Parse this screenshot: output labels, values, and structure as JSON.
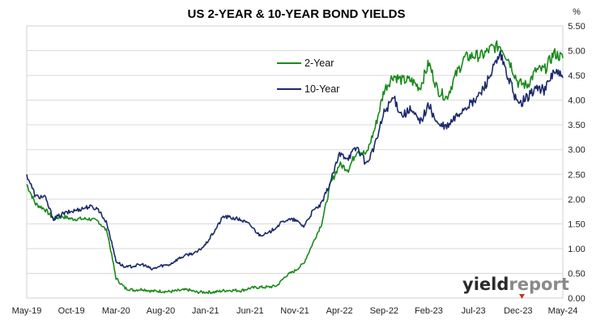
{
  "chart_data": {
    "type": "line",
    "title": "US 2-YEAR & 10-YEAR BOND YIELDS",
    "y_unit": "%",
    "ylim": [
      0,
      5.5
    ],
    "y_ticks": [
      "0.00",
      "0.50",
      "1.00",
      "1.50",
      "2.00",
      "2.50",
      "3.00",
      "3.50",
      "4.00",
      "4.50",
      "5.00",
      "5.50"
    ],
    "x_ticks": [
      "May-19",
      "Oct-19",
      "Mar-20",
      "Aug-20",
      "Jan-21",
      "Jun-21",
      "Nov-21",
      "Apr-22",
      "Sep-22",
      "Feb-23",
      "Jul-23",
      "Dec-23",
      "May-24"
    ],
    "grid": true,
    "legend_position": "top-center",
    "x_range": [
      "2019-05",
      "2024-05"
    ],
    "x_dates": [
      "2019-05",
      "2019-06",
      "2019-07",
      "2019-08",
      "2019-09",
      "2019-10",
      "2019-11",
      "2019-12",
      "2020-01",
      "2020-02",
      "2020-03",
      "2020-04",
      "2020-05",
      "2020-06",
      "2020-07",
      "2020-08",
      "2020-09",
      "2020-10",
      "2020-11",
      "2020-12",
      "2021-01",
      "2021-02",
      "2021-03",
      "2021-04",
      "2021-05",
      "2021-06",
      "2021-07",
      "2021-08",
      "2021-09",
      "2021-10",
      "2021-11",
      "2021-12",
      "2022-01",
      "2022-02",
      "2022-03",
      "2022-04",
      "2022-05",
      "2022-06",
      "2022-07",
      "2022-08",
      "2022-09",
      "2022-10",
      "2022-11",
      "2022-12",
      "2023-01",
      "2023-02",
      "2023-03",
      "2023-04",
      "2023-05",
      "2023-06",
      "2023-07",
      "2023-08",
      "2023-09",
      "2023-10",
      "2023-11",
      "2023-12",
      "2024-01",
      "2024-02",
      "2024-03",
      "2024-04",
      "2024-05"
    ],
    "series": [
      {
        "name": "2-Year",
        "color": "#1a8a1a",
        "values": [
          2.3,
          1.9,
          1.8,
          1.6,
          1.65,
          1.6,
          1.6,
          1.6,
          1.55,
          1.35,
          0.4,
          0.2,
          0.16,
          0.18,
          0.14,
          0.14,
          0.13,
          0.15,
          0.17,
          0.12,
          0.12,
          0.12,
          0.15,
          0.16,
          0.15,
          0.2,
          0.22,
          0.22,
          0.25,
          0.45,
          0.55,
          0.7,
          1.1,
          1.5,
          2.3,
          2.7,
          2.6,
          3.0,
          2.9,
          3.45,
          4.2,
          4.5,
          4.4,
          4.4,
          4.25,
          4.75,
          4.2,
          4.05,
          4.5,
          4.85,
          4.9,
          4.9,
          5.05,
          5.1,
          4.8,
          4.35,
          4.3,
          4.6,
          4.62,
          4.95,
          4.85
        ]
      },
      {
        "name": "10-Year",
        "color": "#1b2a6b",
        "values": [
          2.5,
          2.05,
          2.05,
          1.6,
          1.7,
          1.75,
          1.8,
          1.85,
          1.8,
          1.5,
          0.75,
          0.62,
          0.65,
          0.68,
          0.58,
          0.65,
          0.68,
          0.8,
          0.88,
          0.92,
          1.08,
          1.35,
          1.65,
          1.62,
          1.58,
          1.48,
          1.28,
          1.3,
          1.45,
          1.58,
          1.58,
          1.45,
          1.75,
          1.9,
          2.35,
          2.9,
          2.85,
          3.05,
          2.7,
          3.1,
          3.75,
          4.05,
          3.7,
          3.8,
          3.55,
          3.9,
          3.5,
          3.45,
          3.65,
          3.85,
          3.95,
          4.2,
          4.55,
          4.9,
          4.4,
          3.9,
          4.05,
          4.25,
          4.2,
          4.6,
          4.45
        ]
      }
    ]
  },
  "watermark": {
    "part_a": "yield",
    "part_b": "report",
    "accent_color": "#c0392b"
  }
}
